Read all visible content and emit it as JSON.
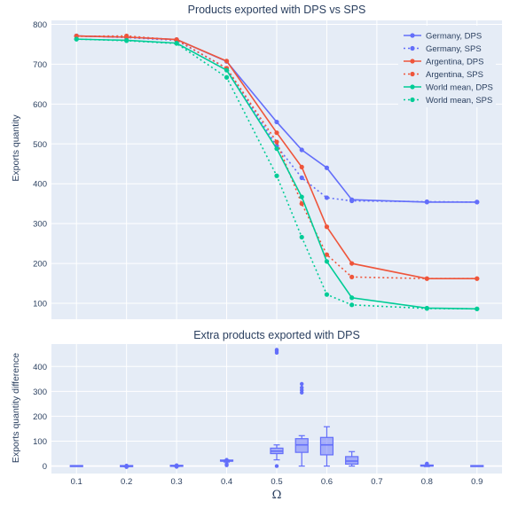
{
  "chart_data": [
    {
      "type": "line",
      "title": "Products exported with DPS vs SPS",
      "xlabel": "",
      "ylabel": "Exports quantity",
      "xlim": [
        0.05,
        0.95
      ],
      "ylim": [
        60,
        810
      ],
      "yticks": [
        100,
        200,
        300,
        400,
        500,
        600,
        700,
        800
      ],
      "grid": true,
      "legend_position": "top-right",
      "x": [
        0.1,
        0.2,
        0.3,
        0.4,
        0.5,
        0.55,
        0.6,
        0.65,
        0.8,
        0.9
      ],
      "series": [
        {
          "name": "Germany, DPS",
          "color": "#636efa",
          "dash": "solid",
          "values": [
            771,
            768,
            762,
            707,
            555,
            485,
            440,
            360,
            354,
            354
          ]
        },
        {
          "name": "Germany, SPS",
          "color": "#636efa",
          "dash": "dot",
          "values": [
            771,
            767,
            760,
            690,
            495,
            415,
            365,
            357,
            355,
            354
          ]
        },
        {
          "name": "Argentina, DPS",
          "color": "#ef553b",
          "dash": "solid",
          "values": [
            771,
            768,
            762,
            708,
            528,
            442,
            292,
            200,
            162,
            162
          ]
        },
        {
          "name": "Argentina, SPS",
          "color": "#ef553b",
          "dash": "dot",
          "values": [
            770,
            771,
            761,
            690,
            505,
            350,
            222,
            166,
            162,
            162
          ]
        },
        {
          "name": "World mean, DPS",
          "color": "#00cc96",
          "dash": "solid",
          "values": [
            763,
            760,
            753,
            685,
            488,
            367,
            205,
            114,
            88,
            86
          ]
        },
        {
          "name": "World mean, SPS",
          "color": "#00cc96",
          "dash": "dot",
          "values": [
            763,
            759,
            752,
            667,
            420,
            266,
            122,
            96,
            87,
            86
          ]
        }
      ]
    },
    {
      "type": "box",
      "title": "Extra products exported with DPS",
      "xlabel": "Ω",
      "ylabel": "Exports quantity difference",
      "xlim": [
        0.05,
        0.95
      ],
      "ylim": [
        -30,
        490
      ],
      "xticks": [
        "0.1",
        "0.2",
        "0.3",
        "0.4",
        "0.5",
        "0.6",
        "0.7",
        "0.8",
        "0.9"
      ],
      "yticks": [
        0,
        100,
        200,
        300,
        400
      ],
      "grid": true,
      "color": "#636efa",
      "boxes": [
        {
          "x": 0.1,
          "min": 0,
          "q1": 0,
          "median": 0,
          "q3": 0,
          "max": 0,
          "outliers": []
        },
        {
          "x": 0.2,
          "min": -3,
          "q1": -2,
          "median": -1,
          "q3": 0,
          "max": 1,
          "outliers": [
            -4,
            2
          ]
        },
        {
          "x": 0.3,
          "min": -2,
          "q1": -1,
          "median": 0,
          "q3": 1,
          "max": 2,
          "outliers": [
            -3,
            3
          ]
        },
        {
          "x": 0.4,
          "min": 16,
          "q1": 18,
          "median": 20,
          "q3": 22,
          "max": 24,
          "outliers": [
            3,
            8,
            22,
            25
          ]
        },
        {
          "x": 0.5,
          "min": 25,
          "q1": 50,
          "median": 60,
          "q3": 72,
          "max": 85,
          "outliers": [
            0,
            455,
            462,
            467
          ]
        },
        {
          "x": 0.55,
          "min": 0,
          "q1": 55,
          "median": 85,
          "q3": 110,
          "max": 122,
          "outliers": [
            295,
            305,
            315,
            330
          ]
        },
        {
          "x": 0.6,
          "min": 0,
          "q1": 45,
          "median": 85,
          "q3": 115,
          "max": 158,
          "outliers": []
        },
        {
          "x": 0.65,
          "min": 0,
          "q1": 8,
          "median": 20,
          "q3": 38,
          "max": 58,
          "outliers": []
        },
        {
          "x": 0.8,
          "min": -2,
          "q1": 0,
          "median": 1,
          "q3": 2,
          "max": 4,
          "outliers": [
            8,
            10
          ]
        },
        {
          "x": 0.9,
          "min": 0,
          "q1": 0,
          "median": 0,
          "q3": 0,
          "max": 0,
          "outliers": []
        }
      ]
    }
  ]
}
